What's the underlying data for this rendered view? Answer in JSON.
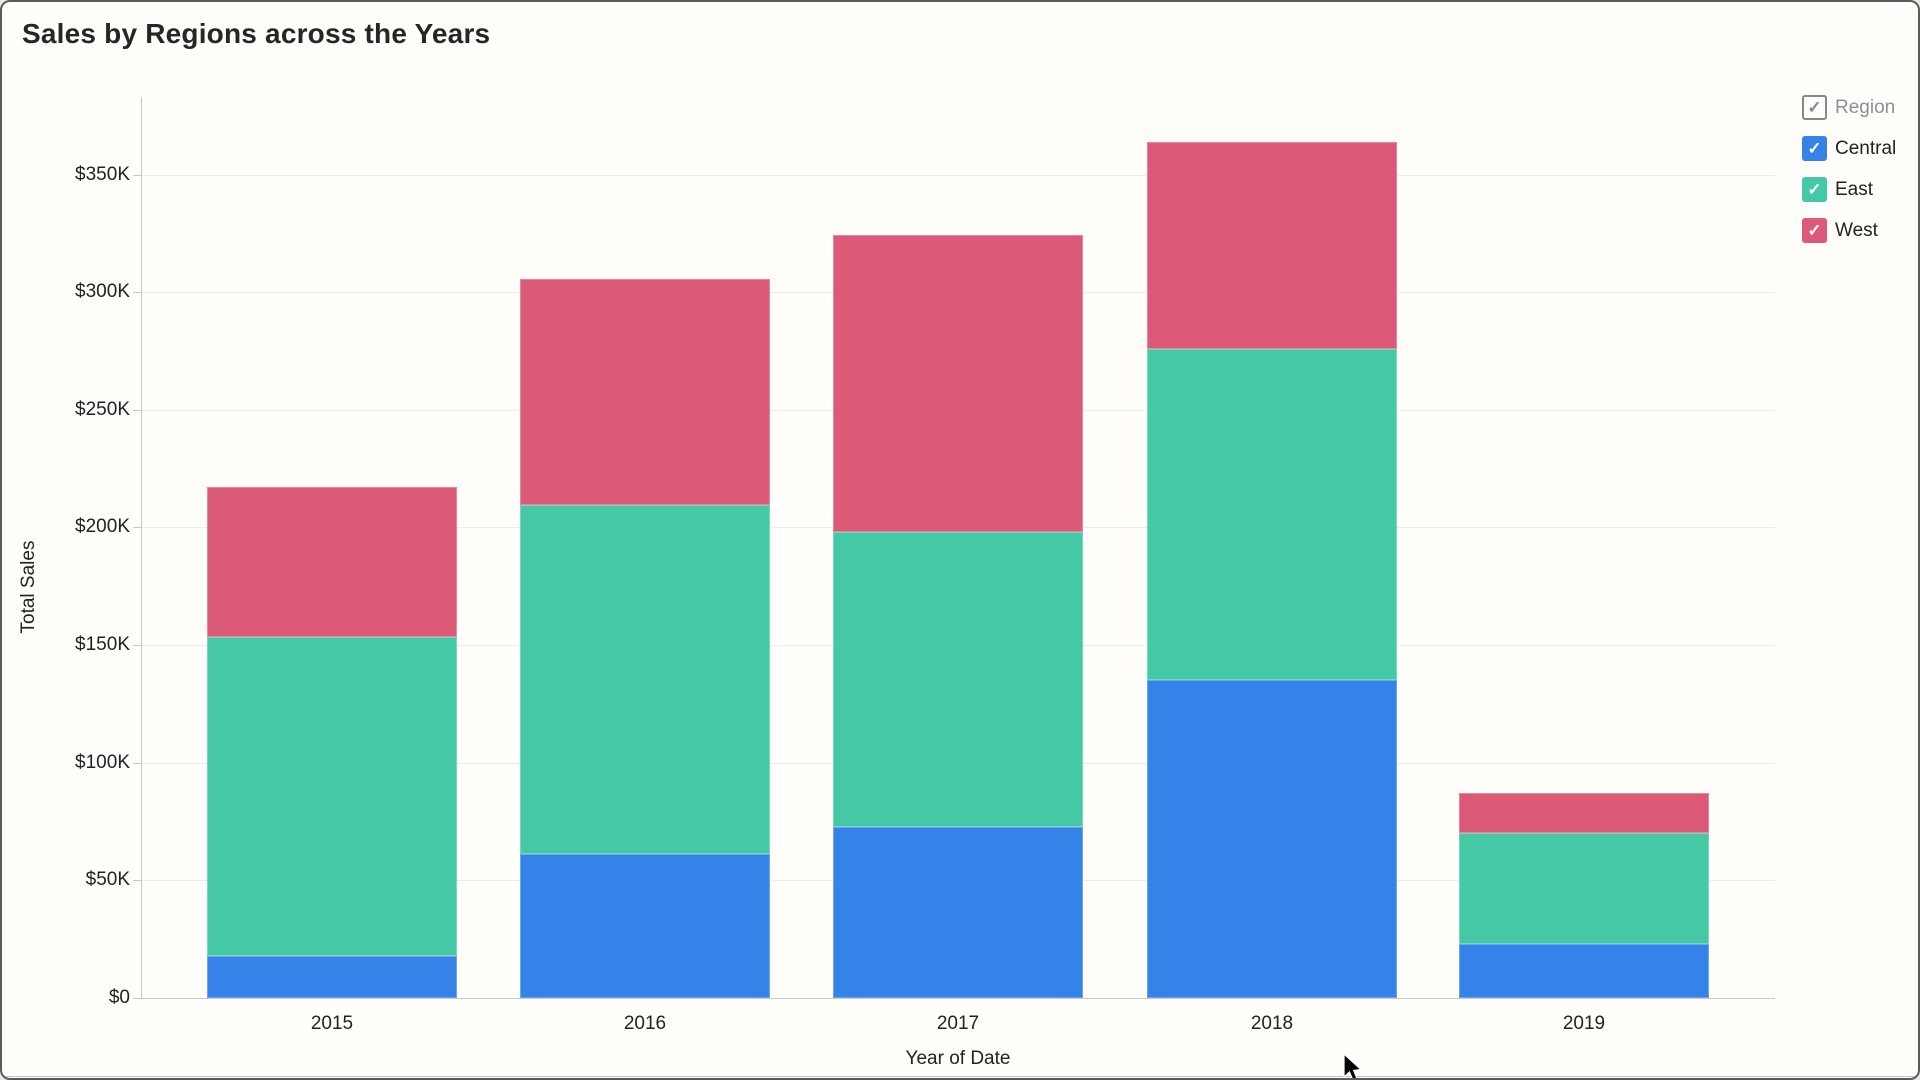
{
  "window": {
    "title": "Sales by Regions across the Years"
  },
  "chart_data": {
    "type": "bar",
    "stacked": true,
    "title": "Sales by Regions across the Years",
    "xlabel": "Year of Date",
    "ylabel": "Total Sales",
    "categories": [
      "2015",
      "2016",
      "2017",
      "2018",
      "2019"
    ],
    "series": [
      {
        "name": "Central",
        "color": "#3583e8",
        "values": [
          18000,
          61000,
          72500,
          135000,
          23000
        ]
      },
      {
        "name": "East",
        "color": "#45c8a5",
        "values": [
          135500,
          148500,
          125500,
          141000,
          47000
        ]
      },
      {
        "name": "West",
        "color": "#dc5a78",
        "values": [
          63500,
          96000,
          126500,
          88000,
          17000
        ]
      }
    ],
    "totals": [
      217000,
      305500,
      324500,
      364000,
      87000
    ],
    "y_ticks": [
      {
        "value": 0,
        "label": "$0"
      },
      {
        "value": 50000,
        "label": "$50K"
      },
      {
        "value": 100000,
        "label": "$100K"
      },
      {
        "value": 150000,
        "label": "$150K"
      },
      {
        "value": 200000,
        "label": "$200K"
      },
      {
        "value": 250000,
        "label": "$250K"
      },
      {
        "value": 300000,
        "label": "$300K"
      },
      {
        "value": 350000,
        "label": "$350K"
      }
    ],
    "ylim": [
      0,
      370000
    ],
    "grid": true,
    "legend_position": "top-right"
  },
  "legend": {
    "header": {
      "label": "Region",
      "checked": true,
      "check_glyph": "✓"
    },
    "items": [
      {
        "label": "Central",
        "color": "#3583e8",
        "checked": true,
        "check_glyph": "✓"
      },
      {
        "label": "East",
        "color": "#45c8a5",
        "checked": true,
        "check_glyph": "✓"
      },
      {
        "label": "West",
        "color": "#dc5a78",
        "checked": true,
        "check_glyph": "✓"
      }
    ]
  },
  "colors": {
    "background": "#fffefa",
    "grid": "#ececea",
    "axis": "#c8c8c6",
    "text": "#222222",
    "legend_header_text": "#8a9097",
    "central": "#3583e8",
    "east": "#45c8a5",
    "west": "#dc5a78"
  }
}
